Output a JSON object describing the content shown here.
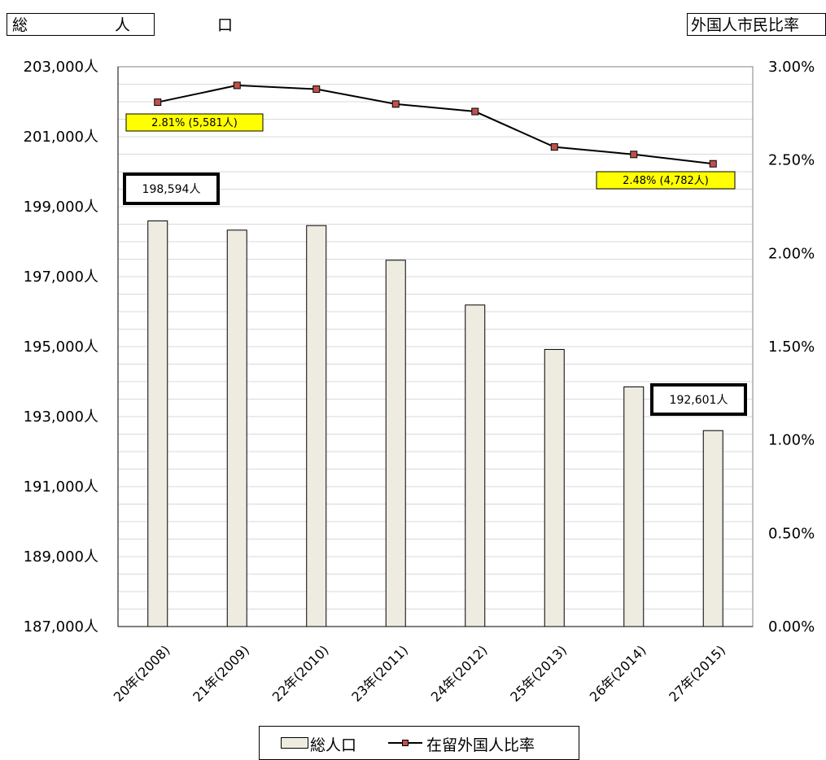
{
  "left_axis_title": "総　人　口",
  "right_axis_title": "外国人市民比率",
  "chart_data": {
    "type": "bar+line",
    "categories": [
      "20年(2008)",
      "21年(2009)",
      "22年(2010)",
      "23年(2011)",
      "24年(2012)",
      "25年(2013)",
      "26年(2014)",
      "27年(2015)"
    ],
    "series": [
      {
        "name": "総人口",
        "type": "bar",
        "axis": "left",
        "values": [
          198594,
          198330,
          198460,
          197470,
          196190,
          194920,
          193850,
          192601
        ]
      },
      {
        "name": "在留外国人比率",
        "type": "line",
        "axis": "right",
        "values": [
          2.81,
          2.9,
          2.88,
          2.8,
          2.76,
          2.57,
          2.53,
          2.48
        ]
      }
    ],
    "y_left": {
      "min": 187000,
      "max": 203000,
      "ticks": [
        {
          "value": 187000,
          "label": "187,000人"
        },
        {
          "value": 189000,
          "label": "189,000人"
        },
        {
          "value": 191000,
          "label": "191,000人"
        },
        {
          "value": 193000,
          "label": "193,000人"
        },
        {
          "value": 195000,
          "label": "195,000人"
        },
        {
          "value": 197000,
          "label": "197,000人"
        },
        {
          "value": 199000,
          "label": "199,000人"
        },
        {
          "value": 201000,
          "label": "201,000人"
        },
        {
          "value": 203000,
          "label": "203,000人"
        }
      ]
    },
    "y_right": {
      "min": 0,
      "max": 3.0,
      "ticks": [
        {
          "value": 0,
          "label": "0.00%"
        },
        {
          "value": 0.5,
          "label": "0.50%"
        },
        {
          "value": 1.0,
          "label": "1.00%"
        },
        {
          "value": 1.5,
          "label": "1.50%"
        },
        {
          "value": 2.0,
          "label": "2.00%"
        },
        {
          "value": 2.5,
          "label": "2.50%"
        },
        {
          "value": 3.0,
          "label": "3.00%"
        }
      ]
    },
    "grid": true,
    "legend_position": "bottom",
    "annotations": {
      "bar_first": "198,594人",
      "bar_last": "192,601人",
      "line_first": "2.81% (5,581人)",
      "line_last": "2.48% (4,782人)"
    }
  },
  "legend": {
    "bar_label": "総人口",
    "line_label": "在留外国人比率"
  },
  "colors": {
    "bar_fill": "#EEEBE0",
    "bar_stroke": "#000000",
    "line": "#000000",
    "marker": "#C0504D",
    "highlight": "#FFFF00",
    "grid": "#D9D9D9"
  }
}
